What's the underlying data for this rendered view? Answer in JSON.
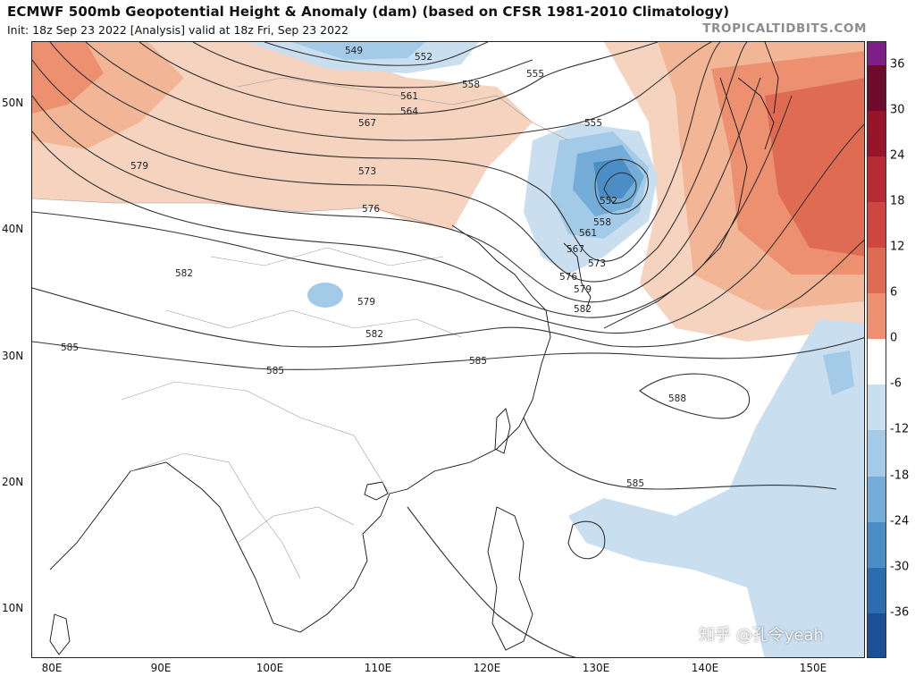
{
  "header": {
    "title": "ECMWF 500mb Geopotential Height & Anomaly (dam) (based on CFSR 1981-2010 Climatology)",
    "subtitle": "Init: 18z Sep 23 2022   [Analysis]   valid at 18z Fri, Sep 23 2022",
    "brand": "TROPICALTIDBITS.COM"
  },
  "axes": {
    "lat_labels": [
      "50N",
      "40N",
      "30N",
      "20N",
      "10N"
    ],
    "lon_labels": [
      "80E",
      "90E",
      "100E",
      "110E",
      "120E",
      "130E",
      "140E",
      "150E"
    ]
  },
  "colorbar": {
    "ticks": [
      "36",
      "30",
      "24",
      "18",
      "12",
      "6",
      "0",
      "-6",
      "-12",
      "-18",
      "-24",
      "-30",
      "-36"
    ],
    "colors": {
      "pos": [
        "#f6d3bf",
        "#f2b596",
        "#ec9070",
        "#e06b53",
        "#cf4540",
        "#b72a32",
        "#97142a",
        "#6e0a2c"
      ],
      "neg": [
        "#c9dff0",
        "#a3cbe7",
        "#74add8",
        "#4b8dc5",
        "#2c6db0",
        "#1b4f97",
        "#14377c",
        "#0d2260"
      ],
      "top_cap": "#7d1f86"
    }
  },
  "contour_labels": [
    "549",
    "552",
    "555",
    "558",
    "561",
    "564",
    "567",
    "573",
    "576",
    "579",
    "582",
    "585",
    "588"
  ],
  "watermark": "知乎 @孔令yeah"
}
